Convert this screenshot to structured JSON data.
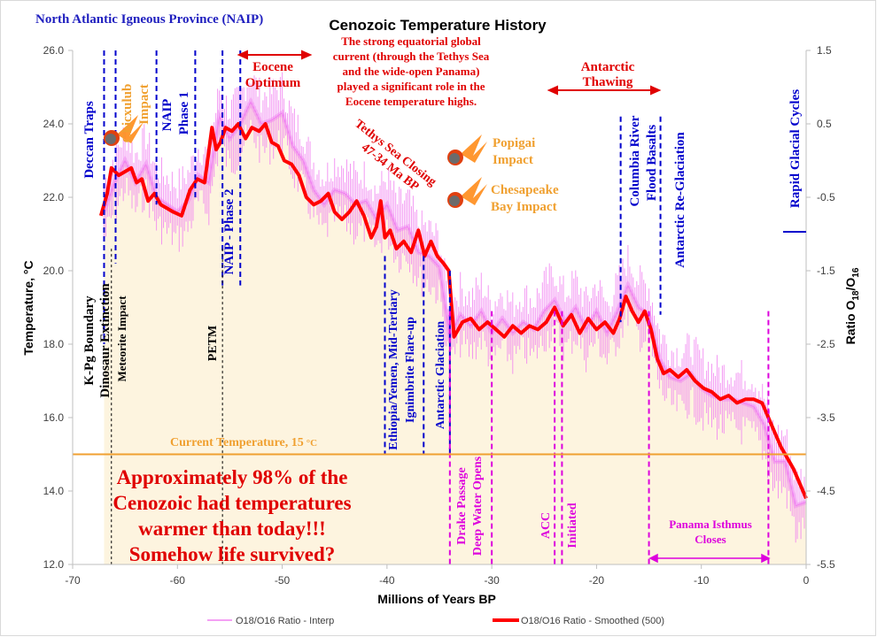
{
  "chart_data": {
    "type": "line",
    "title": "Cenozoic Temperature History",
    "subtitle_left": "North Atlantic Igneous Province (NAIP)",
    "xlabel": "Millions of Years BP",
    "ylabel": "Temperature, °C",
    "y2label_main": "Ratio O",
    "y2label_sub1": "18",
    "y2label_mid": "/O",
    "y2label_sub2": "16",
    "xlim": [
      -70,
      0
    ],
    "ylim": [
      12,
      26
    ],
    "y2lim": [
      -5.5,
      1.5
    ],
    "x_ticks": [
      "-70",
      "-60",
      "-50",
      "-40",
      "-30",
      "-20",
      "-10",
      "0"
    ],
    "x_tick_values": [
      -70,
      -60,
      -50,
      -40,
      -30,
      -20,
      -10,
      0
    ],
    "y_ticks": [
      "12.0",
      "14.0",
      "16.0",
      "18.0",
      "20.0",
      "22.0",
      "24.0",
      "26.0"
    ],
    "y_tick_values": [
      12,
      14,
      16,
      18,
      20,
      22,
      24,
      26
    ],
    "y2_ticks": [
      "-5.5",
      "-4.5",
      "-3.5",
      "-2.5",
      "-1.5",
      "-0.5",
      "0.5",
      "1.5"
    ],
    "y2_tick_values": [
      -5.5,
      -4.5,
      -3.5,
      -2.5,
      -1.5,
      -0.5,
      0.5,
      1.5
    ],
    "grid": false,
    "legend_position": "bottom",
    "series": [
      {
        "name": "O18/O16 Ratio - Interp",
        "color": "#f080f0",
        "x": [
          -67,
          -66,
          -65,
          -64,
          -63,
          -62,
          -61,
          -60,
          -59,
          -58,
          -57,
          -56,
          -55,
          -54,
          -53,
          -52,
          -51,
          -50,
          -49,
          -48,
          -47,
          -46,
          -45,
          -44,
          -43,
          -42,
          -41,
          -40,
          -39,
          -38,
          -37,
          -36,
          -35,
          -34,
          -33,
          -32,
          -31,
          -30,
          -29,
          -28,
          -27,
          -26,
          -25,
          -24,
          -23,
          -22,
          -21,
          -20,
          -19,
          -18,
          -17,
          -16,
          -15,
          -14,
          -13,
          -12,
          -11,
          -10,
          -9,
          -8,
          -7,
          -6,
          -5,
          -4,
          -3,
          -2,
          -1,
          0
        ],
        "y": [
          21.6,
          22.4,
          23.0,
          22.4,
          22.9,
          22.0,
          21.8,
          21.6,
          21.9,
          22.6,
          22.4,
          24.2,
          23.6,
          24.0,
          24.6,
          24.0,
          24.1,
          24.3,
          23.4,
          23.0,
          22.2,
          21.8,
          22.2,
          22.1,
          21.8,
          21.9,
          21.4,
          21.8,
          21.1,
          21.2,
          20.5,
          20.4,
          20.1,
          18.2,
          18.8,
          18.5,
          18.9,
          18.3,
          18.7,
          18.3,
          18.6,
          18.4,
          18.9,
          19.2,
          18.6,
          19.0,
          18.4,
          18.9,
          18.3,
          18.9,
          19.6,
          19.0,
          18.8,
          17.6,
          17.1,
          17.0,
          17.2,
          16.8,
          16.6,
          16.5,
          16.5,
          16.4,
          16.3,
          15.8,
          14.8,
          14.8,
          13.6,
          13.7
        ]
      },
      {
        "name": "O18/O16 Ratio - Smoothed (500)",
        "color": "#ff0000",
        "x": [
          -67.3,
          -66.7,
          -66.3,
          -65.6,
          -65,
          -64.4,
          -63.9,
          -63.4,
          -62.8,
          -62.2,
          -61.6,
          -61,
          -60.4,
          -59.6,
          -58.8,
          -58.1,
          -57.4,
          -56.7,
          -56.3,
          -55.9,
          -55.4,
          -54.8,
          -54.2,
          -53.5,
          -52.9,
          -52.2,
          -51.6,
          -51,
          -50.4,
          -49.8,
          -49.1,
          -48.4,
          -47.7,
          -47,
          -46.3,
          -45.6,
          -45,
          -44.3,
          -43.6,
          -42.9,
          -42.2,
          -41.5,
          -41,
          -40.6,
          -40.2,
          -39.7,
          -39.1,
          -38.4,
          -37.7,
          -37,
          -36.4,
          -35.8,
          -35.2,
          -34.6,
          -34.1,
          -33.6,
          -32.8,
          -32,
          -31.2,
          -30.4,
          -29.6,
          -28.8,
          -28,
          -27.2,
          -26.4,
          -25.6,
          -24.8,
          -24,
          -23.2,
          -22.4,
          -21.6,
          -20.8,
          -20,
          -19.2,
          -18.4,
          -17.8,
          -17.2,
          -16.6,
          -16,
          -15.4,
          -14.8,
          -14.2,
          -13.6,
          -13,
          -12.2,
          -11.4,
          -10.6,
          -9.8,
          -9,
          -8.2,
          -7.4,
          -6.6,
          -5.8,
          -5,
          -4.2,
          -3.6,
          -3,
          -2.4,
          -1.8,
          -1.2,
          -0.6,
          0
        ],
        "y": [
          21.5,
          22.1,
          22.8,
          22.6,
          22.7,
          22.8,
          22.4,
          22.5,
          21.9,
          22.1,
          21.8,
          21.7,
          21.6,
          21.5,
          22.2,
          22.5,
          22.4,
          23.9,
          23.3,
          23.5,
          23.9,
          23.8,
          24.0,
          23.6,
          23.9,
          23.8,
          24.0,
          23.5,
          23.4,
          23.0,
          22.9,
          22.6,
          22.0,
          21.8,
          21.9,
          22.1,
          21.6,
          21.4,
          21.6,
          21.9,
          21.5,
          20.9,
          21.2,
          21.9,
          20.9,
          21.1,
          20.6,
          20.8,
          20.5,
          21.1,
          20.4,
          20.8,
          20.4,
          20.2,
          20.0,
          18.2,
          18.6,
          18.7,
          18.4,
          18.6,
          18.4,
          18.2,
          18.5,
          18.3,
          18.5,
          18.4,
          18.6,
          19.0,
          18.5,
          18.8,
          18.3,
          18.7,
          18.4,
          18.6,
          18.3,
          18.7,
          19.3,
          18.9,
          18.6,
          18.9,
          18.4,
          17.6,
          17.2,
          17.3,
          17.1,
          17.3,
          17.0,
          16.8,
          16.7,
          16.5,
          16.6,
          16.4,
          16.5,
          16.5,
          16.4,
          16.0,
          15.6,
          15.2,
          14.9,
          14.6,
          14.2,
          13.8
        ]
      }
    ],
    "reference_line": {
      "label": "Current Temperature, 15",
      "unit": "°C",
      "value": 15,
      "color": "#f0a030"
    },
    "event_lines": [
      {
        "x": -67,
        "color": "#0000cc",
        "label": "Deccan Traps"
      },
      {
        "x": -65.9,
        "color": "#0000cc",
        "label": ""
      },
      {
        "x": -66.3,
        "color": "#000000",
        "label": "Meteorite Impact"
      },
      {
        "x": -62,
        "color": "#0000cc",
        "label": "NAIP Phase 1"
      },
      {
        "x": -58.3,
        "color": "#0000cc",
        "label": ""
      },
      {
        "x": -55.7,
        "color": "#0000cc",
        "label": "NAIP - Phase 2"
      },
      {
        "x": -55.7,
        "color": "#000000",
        "label": "PETM"
      },
      {
        "x": -54,
        "color": "#0000cc",
        "label": ""
      },
      {
        "x": -40.2,
        "color": "#0000cc",
        "label": "Ethiopia/Yemen, Mid-Tertiary Ignimbrite Flare-up"
      },
      {
        "x": -36.5,
        "color": "#0000cc",
        "label": ""
      },
      {
        "x": -34,
        "color": "#0000cc",
        "label": "Antarctic Glaciation"
      },
      {
        "x": -17.7,
        "color": "#0000cc",
        "label": "Columbia River Flood Basalts"
      },
      {
        "x": -13.9,
        "color": "#0000cc",
        "label": "Antarctic Re-Glaciation"
      },
      {
        "x": -34,
        "color": "#dd00dd",
        "label": ""
      },
      {
        "x": -30,
        "color": "#dd00dd",
        "label": "Drake Passage Deep Water Opens"
      },
      {
        "x": -24,
        "color": "#dd00dd",
        "label": ""
      },
      {
        "x": -23.3,
        "color": "#dd00dd",
        "label": "ACC Initiated"
      },
      {
        "x": -15,
        "color": "#dd00dd",
        "label": ""
      },
      {
        "x": -3.6,
        "color": "#dd00dd",
        "label": "Panama Isthmus Closes"
      }
    ],
    "annotations": {
      "kpg_line1": "K-Pg Boundary",
      "kpg_line2": "Dinosaur Extinction",
      "meteorite": "Meteorite Impact",
      "deccan": "Deccan Traps",
      "chicxulub1": "Chicxulub",
      "chicxulub2": "Impact",
      "naip1_a": "NAIP",
      "naip1_b": "Phase 1",
      "naip2": "NAIP - Phase 2",
      "petm": "PETM",
      "eocene1": "Eocene",
      "eocene2": "Optimum",
      "current1": "The strong equatorial global",
      "current2": "current (through the Tethys Sea",
      "current3": "and the wide-open Panama)",
      "current4": "played a significant role in the",
      "current5": "Eocene temperature highs.",
      "tethys1": "Tethys Sea Closing",
      "tethys2": "47-34 Ma BP",
      "popigai1": "Popigai",
      "popigai2": "Impact",
      "chesapeake1": "Chesapeake",
      "chesapeake2": "Bay Impact",
      "antarctic_thaw1": "Antarctic",
      "antarctic_thaw2": "Thawing",
      "columbia1": "Columbia River",
      "columbia2": "Flood Basalts",
      "re_glaciation": "Antarctic Re-Glaciation",
      "rapid_glacial": "Rapid Glacial Cycles",
      "ethiopia1": "Ethiopia/Yemen, Mid-Tertiary",
      "ethiopia2": "Ignimbrite Flare-up",
      "antarctic_glaciation": "Antarctic Glaciation",
      "drake1": "Drake Passage",
      "drake2": "Deep Water Opens",
      "acc1": "ACC",
      "acc2": "Initiated",
      "panama1": "Panama Isthmus",
      "panama2": "Closes",
      "big1": "Approximately 98% of  the",
      "big2": "Cenozoic had temperatures",
      "big3": "warmer than today!!!",
      "big4": "Somehow life survived?"
    }
  }
}
